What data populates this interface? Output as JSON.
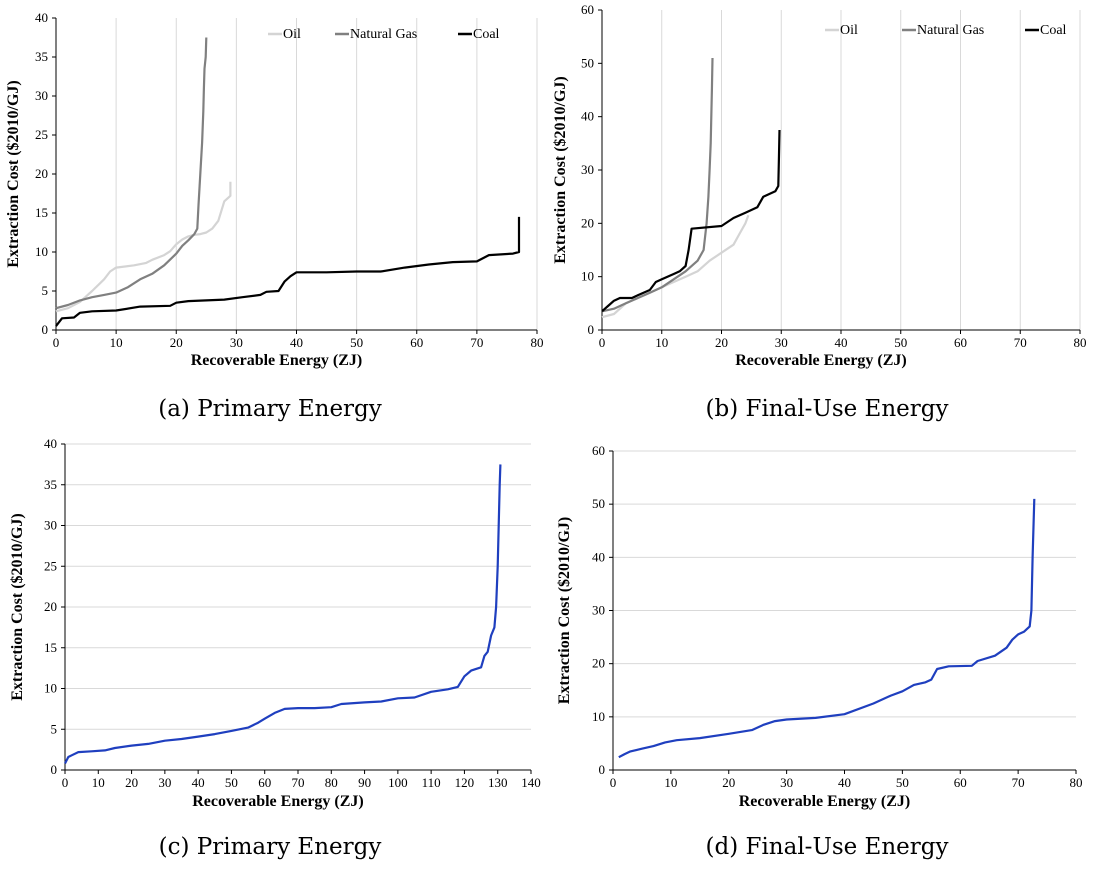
{
  "chart_data": [
    {
      "panel_id": "a",
      "type": "line",
      "caption": "(a) Primary Energy",
      "xlabel": "Recoverable Energy (ZJ)",
      "ylabel": "Extraction Cost ($2010/GJ)",
      "xlim": [
        0,
        80
      ],
      "ylim": [
        0,
        40
      ],
      "xticks": [
        0,
        10,
        20,
        30,
        40,
        50,
        60,
        70,
        80
      ],
      "yticks": [
        0,
        5,
        10,
        15,
        20,
        25,
        30,
        35,
        40
      ],
      "grid": "vertical",
      "legend": "top-right",
      "series": [
        {
          "name": "Oil",
          "color": "#d4d4d4",
          "points": [
            [
              0,
              2.4
            ],
            [
              2,
              2.8
            ],
            [
              4,
              3.6
            ],
            [
              6,
              5.0
            ],
            [
              8,
              6.5
            ],
            [
              9,
              7.5
            ],
            [
              10,
              8.0
            ],
            [
              13,
              8.3
            ],
            [
              15,
              8.6
            ],
            [
              16,
              9.0
            ],
            [
              18,
              9.6
            ],
            [
              19,
              10.1
            ],
            [
              20,
              11.0
            ],
            [
              21,
              11.6
            ],
            [
              22,
              12.0
            ],
            [
              23,
              12.2
            ],
            [
              24,
              12.3
            ],
            [
              25,
              12.5
            ],
            [
              26,
              13.0
            ],
            [
              27,
              14.0
            ],
            [
              28,
              16.5
            ],
            [
              29,
              17.2
            ],
            [
              29,
              19.0
            ]
          ]
        },
        {
          "name": "Natural Gas",
          "color": "#808080",
          "points": [
            [
              0,
              2.8
            ],
            [
              2,
              3.2
            ],
            [
              4,
              3.8
            ],
            [
              6,
              4.2
            ],
            [
              8,
              4.5
            ],
            [
              10,
              4.8
            ],
            [
              12,
              5.5
            ],
            [
              14,
              6.5
            ],
            [
              16,
              7.2
            ],
            [
              18,
              8.3
            ],
            [
              20,
              9.8
            ],
            [
              21,
              10.8
            ],
            [
              22,
              11.5
            ],
            [
              23,
              12.3
            ],
            [
              23.5,
              13.0
            ],
            [
              23.7,
              16
            ],
            [
              24,
              20
            ],
            [
              24.3,
              24
            ],
            [
              24.5,
              28
            ],
            [
              24.6,
              31
            ],
            [
              24.7,
              33.5
            ],
            [
              24.9,
              35
            ],
            [
              25,
              37.5
            ]
          ]
        },
        {
          "name": "Coal",
          "color": "#000000",
          "points": [
            [
              0,
              0.5
            ],
            [
              1,
              1.5
            ],
            [
              3,
              1.6
            ],
            [
              4,
              2.2
            ],
            [
              6,
              2.4
            ],
            [
              10,
              2.5
            ],
            [
              14,
              3.0
            ],
            [
              19,
              3.1
            ],
            [
              20,
              3.5
            ],
            [
              22,
              3.7
            ],
            [
              28,
              3.9
            ],
            [
              31,
              4.2
            ],
            [
              34,
              4.5
            ],
            [
              35,
              4.9
            ],
            [
              37,
              5.0
            ],
            [
              38,
              6.2
            ],
            [
              39,
              6.9
            ],
            [
              40,
              7.4
            ],
            [
              45,
              7.4
            ],
            [
              50,
              7.5
            ],
            [
              54,
              7.5
            ],
            [
              58,
              8.0
            ],
            [
              62,
              8.4
            ],
            [
              66,
              8.7
            ],
            [
              70,
              8.8
            ],
            [
              72,
              9.6
            ],
            [
              76,
              9.8
            ],
            [
              77,
              10.0
            ],
            [
              77,
              14.5
            ]
          ]
        }
      ]
    },
    {
      "panel_id": "b",
      "type": "line",
      "caption": "(b) Final-Use Energy",
      "xlabel": "Recoverable Energy (ZJ)",
      "ylabel": "Extraction Cost ($2010/GJ)",
      "xlim": [
        0,
        80
      ],
      "ylim": [
        0,
        60
      ],
      "xticks": [
        0,
        10,
        20,
        30,
        40,
        50,
        60,
        70,
        80
      ],
      "yticks": [
        0,
        10,
        20,
        30,
        40,
        50,
        60
      ],
      "grid": "vertical",
      "legend": "top-right",
      "series": [
        {
          "name": "Oil",
          "color": "#d4d4d4",
          "points": [
            [
              0,
              2.4
            ],
            [
              2,
              3.0
            ],
            [
              4,
              5.0
            ],
            [
              6,
              6.0
            ],
            [
              8,
              7.0
            ],
            [
              10,
              8.0
            ],
            [
              12,
              9.0
            ],
            [
              14,
              10.0
            ],
            [
              16,
              11.0
            ],
            [
              18,
              13.0
            ],
            [
              20,
              14.5
            ],
            [
              22,
              16.0
            ],
            [
              23,
              18.0
            ],
            [
              24,
              20.0
            ],
            [
              24.5,
              21.5
            ]
          ]
        },
        {
          "name": "Natural Gas",
          "color": "#808080",
          "points": [
            [
              0,
              3.5
            ],
            [
              2,
              4.0
            ],
            [
              4,
              5.0
            ],
            [
              6,
              6.0
            ],
            [
              8,
              7.0
            ],
            [
              10,
              8.0
            ],
            [
              12,
              9.5
            ],
            [
              14,
              11.0
            ],
            [
              16,
              13.0
            ],
            [
              17,
              15.0
            ],
            [
              17.5,
              20.0
            ],
            [
              17.8,
              25.0
            ],
            [
              18,
              30.0
            ],
            [
              18.2,
              35.0
            ],
            [
              18.4,
              45.0
            ],
            [
              18.5,
              51.0
            ]
          ]
        },
        {
          "name": "Coal",
          "color": "#000000",
          "points": [
            [
              0,
              3.5
            ],
            [
              1,
              4.5
            ],
            [
              2,
              5.5
            ],
            [
              3,
              6.0
            ],
            [
              5,
              6.0
            ],
            [
              6,
              6.5
            ],
            [
              8,
              7.5
            ],
            [
              9,
              9.0
            ],
            [
              10,
              9.5
            ],
            [
              12,
              10.5
            ],
            [
              13,
              11.0
            ],
            [
              14,
              12.0
            ],
            [
              14.5,
              15.0
            ],
            [
              15,
              19.0
            ],
            [
              20,
              19.5
            ],
            [
              22,
              21.0
            ],
            [
              24,
              22.0
            ],
            [
              26,
              23.0
            ],
            [
              27,
              25.0
            ],
            [
              28,
              25.5
            ],
            [
              29,
              26.0
            ],
            [
              29.5,
              27.0
            ],
            [
              29.6,
              32.0
            ],
            [
              29.7,
              37.5
            ]
          ]
        }
      ]
    },
    {
      "panel_id": "c",
      "type": "line",
      "caption": "(c) Primary Energy",
      "xlabel": "Recoverable Energy (ZJ)",
      "ylabel": "Extraction Cost ($2010/GJ)",
      "xlim": [
        0,
        140
      ],
      "ylim": [
        0,
        40
      ],
      "xticks": [
        0,
        10,
        20,
        30,
        40,
        50,
        60,
        70,
        80,
        90,
        100,
        110,
        120,
        130,
        140
      ],
      "yticks": [
        0,
        5,
        10,
        15,
        20,
        25,
        30,
        35,
        40
      ],
      "grid": "horizontal",
      "legend": "none",
      "series": [
        {
          "color": "#1f3fbf",
          "points": [
            [
              0,
              0.8
            ],
            [
              1,
              1.6
            ],
            [
              2,
              1.8
            ],
            [
              4,
              2.2
            ],
            [
              8,
              2.3
            ],
            [
              12,
              2.4
            ],
            [
              15,
              2.7
            ],
            [
              20,
              3.0
            ],
            [
              25,
              3.2
            ],
            [
              30,
              3.6
            ],
            [
              35,
              3.8
            ],
            [
              40,
              4.1
            ],
            [
              45,
              4.4
            ],
            [
              50,
              4.8
            ],
            [
              55,
              5.2
            ],
            [
              58,
              5.8
            ],
            [
              60,
              6.3
            ],
            [
              63,
              7.0
            ],
            [
              66,
              7.5
            ],
            [
              70,
              7.6
            ],
            [
              75,
              7.6
            ],
            [
              80,
              7.7
            ],
            [
              83,
              8.1
            ],
            [
              90,
              8.3
            ],
            [
              95,
              8.4
            ],
            [
              100,
              8.8
            ],
            [
              105,
              8.9
            ],
            [
              110,
              9.6
            ],
            [
              115,
              9.9
            ],
            [
              118,
              10.2
            ],
            [
              120,
              11.5
            ],
            [
              122,
              12.2
            ],
            [
              125,
              12.6
            ],
            [
              126,
              14.0
            ],
            [
              127,
              14.5
            ],
            [
              128,
              16.5
            ],
            [
              129,
              17.5
            ],
            [
              129.5,
              20
            ],
            [
              130,
              25
            ],
            [
              130.3,
              30
            ],
            [
              130.6,
              35
            ],
            [
              130.8,
              37.5
            ]
          ]
        }
      ]
    },
    {
      "panel_id": "d",
      "type": "line",
      "caption": "(d) Final-Use Energy",
      "xlabel": "Recoverable Energy (ZJ)",
      "ylabel": "Extraction Cost ($2010/GJ)",
      "xlim": [
        0,
        80
      ],
      "ylim": [
        0,
        60
      ],
      "xticks": [
        0,
        10,
        20,
        30,
        40,
        50,
        60,
        70,
        80
      ],
      "yticks": [
        0,
        10,
        20,
        30,
        40,
        50,
        60
      ],
      "grid": "horizontal",
      "legend": "none",
      "series": [
        {
          "color": "#1f3fbf",
          "points": [
            [
              1,
              2.4
            ],
            [
              2,
              3.0
            ],
            [
              3,
              3.5
            ],
            [
              5,
              4.0
            ],
            [
              7,
              4.5
            ],
            [
              9,
              5.2
            ],
            [
              11,
              5.6
            ],
            [
              15,
              6.0
            ],
            [
              20,
              6.8
            ],
            [
              24,
              7.5
            ],
            [
              26,
              8.5
            ],
            [
              28,
              9.2
            ],
            [
              30,
              9.5
            ],
            [
              35,
              9.8
            ],
            [
              40,
              10.5
            ],
            [
              45,
              12.5
            ],
            [
              48,
              14.0
            ],
            [
              50,
              14.8
            ],
            [
              52,
              16.0
            ],
            [
              54,
              16.5
            ],
            [
              55,
              17.0
            ],
            [
              56,
              19.0
            ],
            [
              58,
              19.5
            ],
            [
              62,
              19.6
            ],
            [
              63,
              20.5
            ],
            [
              66,
              21.5
            ],
            [
              68,
              23.0
            ],
            [
              69,
              24.5
            ],
            [
              70,
              25.5
            ],
            [
              71,
              26.0
            ],
            [
              72,
              27.0
            ],
            [
              72.3,
              30
            ],
            [
              72.5,
              40
            ],
            [
              72.8,
              51
            ]
          ]
        }
      ]
    }
  ]
}
